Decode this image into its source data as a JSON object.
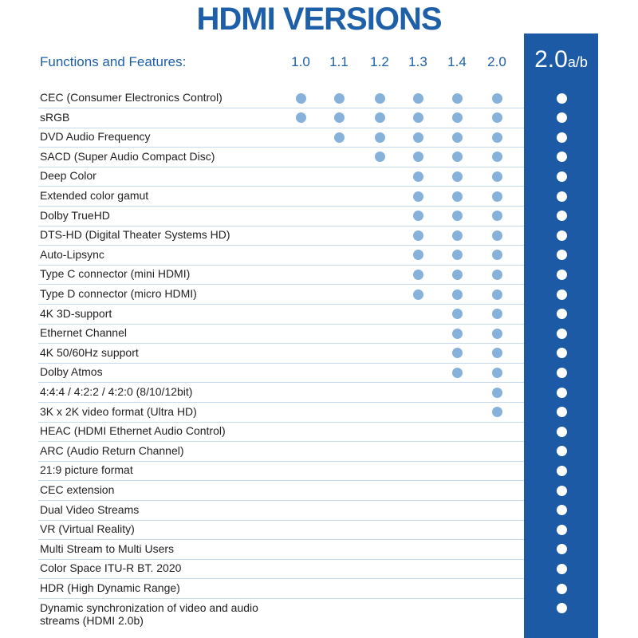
{
  "title": "HDMI VERSIONS",
  "header": {
    "features_label": "Functions and Features:",
    "versions": [
      "1.0",
      "1.1",
      "1.2",
      "1.3",
      "1.4",
      "2.0"
    ],
    "latest": {
      "main": "2.0",
      "suffix": "a/b"
    }
  },
  "rows": [
    {
      "feature": "CEC (Consumer Electronics Control)",
      "support": [
        true,
        true,
        true,
        true,
        true,
        true,
        true
      ]
    },
    {
      "feature": "sRGB",
      "support": [
        true,
        true,
        true,
        true,
        true,
        true,
        true
      ]
    },
    {
      "feature": "DVD Audio Frequency",
      "support": [
        false,
        true,
        true,
        true,
        true,
        true,
        true
      ]
    },
    {
      "feature": "SACD (Super Audio Compact Disc)",
      "support": [
        false,
        false,
        true,
        true,
        true,
        true,
        true
      ]
    },
    {
      "feature": "Deep Color",
      "support": [
        false,
        false,
        false,
        true,
        true,
        true,
        true
      ]
    },
    {
      "feature": "Extended color gamut",
      "support": [
        false,
        false,
        false,
        true,
        true,
        true,
        true
      ]
    },
    {
      "feature": "Dolby TrueHD",
      "support": [
        false,
        false,
        false,
        true,
        true,
        true,
        true
      ]
    },
    {
      "feature": "DTS-HD (Digital Theater Systems HD)",
      "support": [
        false,
        false,
        false,
        true,
        true,
        true,
        true
      ]
    },
    {
      "feature": "Auto-Lipsync",
      "support": [
        false,
        false,
        false,
        true,
        true,
        true,
        true
      ]
    },
    {
      "feature": "Type C connector (mini HDMI)",
      "support": [
        false,
        false,
        false,
        true,
        true,
        true,
        true
      ]
    },
    {
      "feature": "Type D connector (micro HDMI)",
      "support": [
        false,
        false,
        false,
        true,
        true,
        true,
        true
      ]
    },
    {
      "feature": "4K 3D-support",
      "support": [
        false,
        false,
        false,
        false,
        true,
        true,
        true
      ]
    },
    {
      "feature": "Ethernet Channel",
      "support": [
        false,
        false,
        false,
        false,
        true,
        true,
        true
      ]
    },
    {
      "feature": "4K 50/60Hz support",
      "support": [
        false,
        false,
        false,
        false,
        true,
        true,
        true
      ]
    },
    {
      "feature": "Dolby Atmos",
      "support": [
        false,
        false,
        false,
        false,
        true,
        true,
        true
      ]
    },
    {
      "feature": "4:4:4 / 4:2:2 / 4:2:0   (8/10/12bit)",
      "support": [
        false,
        false,
        false,
        false,
        false,
        true,
        true
      ]
    },
    {
      "feature": "3K x 2K video format (Ultra HD)",
      "support": [
        false,
        false,
        false,
        false,
        false,
        true,
        true
      ]
    },
    {
      "feature": "HEAC (HDMI Ethernet Audio Control)",
      "support": [
        false,
        false,
        false,
        false,
        false,
        false,
        true
      ]
    },
    {
      "feature": "ARC (Audio Return Channel)",
      "support": [
        false,
        false,
        false,
        false,
        false,
        false,
        true
      ]
    },
    {
      "feature": "21:9 picture format",
      "support": [
        false,
        false,
        false,
        false,
        false,
        false,
        true
      ]
    },
    {
      "feature": "CEC extension",
      "support": [
        false,
        false,
        false,
        false,
        false,
        false,
        true
      ]
    },
    {
      "feature": "Dual Video Streams",
      "support": [
        false,
        false,
        false,
        false,
        false,
        false,
        true
      ]
    },
    {
      "feature": "VR (Virtual Reality)",
      "support": [
        false,
        false,
        false,
        false,
        false,
        false,
        true
      ]
    },
    {
      "feature": "Multi Stream to Multi Users",
      "support": [
        false,
        false,
        false,
        false,
        false,
        false,
        true
      ]
    },
    {
      "feature": "Color Space ITU-R BT. 2020",
      "support": [
        false,
        false,
        false,
        false,
        false,
        false,
        true
      ]
    },
    {
      "feature": "HDR (High Dynamic Range)",
      "support": [
        false,
        false,
        false,
        false,
        false,
        false,
        true
      ]
    },
    {
      "feature": "Dynamic synchronization of video and audio streams (HDMI 2.0b)",
      "support": [
        false,
        false,
        false,
        false,
        false,
        false,
        true
      ]
    }
  ]
}
